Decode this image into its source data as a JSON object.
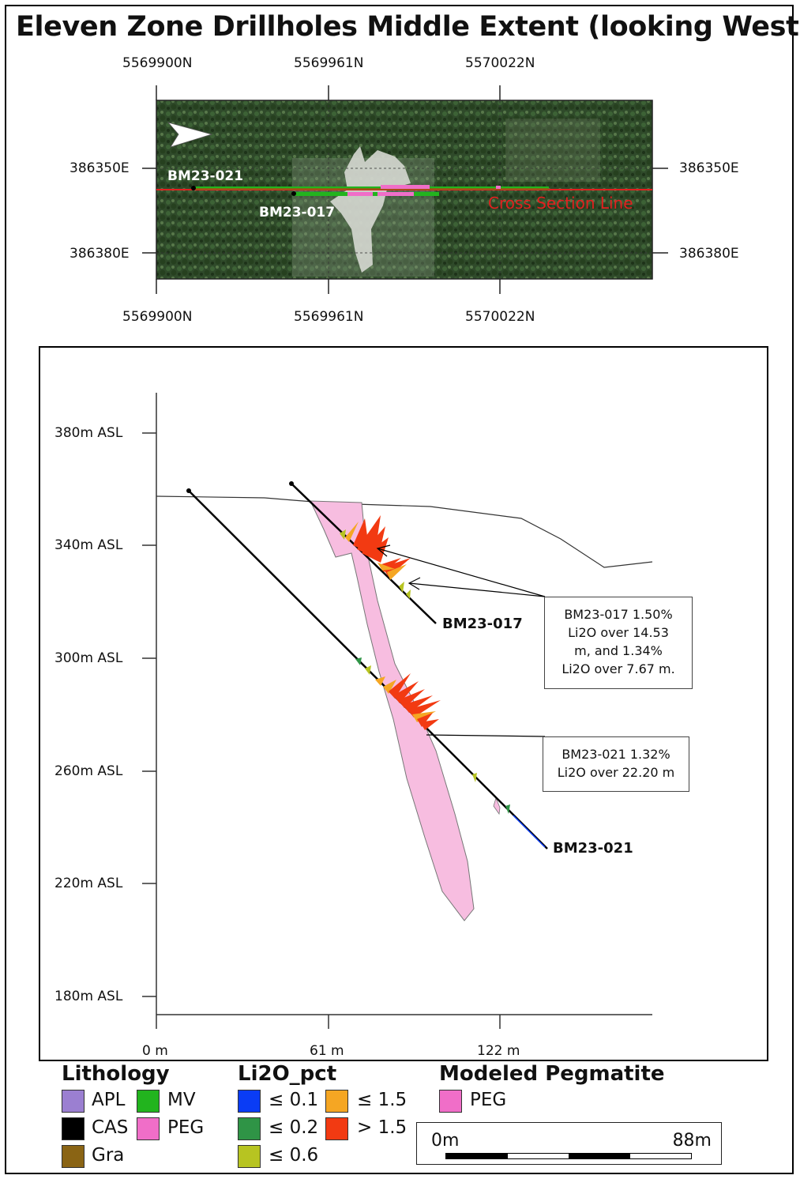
{
  "title": "Eleven Zone Drillholes Middle Extent (looking West)",
  "plan_map": {
    "northings_top": [
      "5569900N",
      "5569961N",
      "5570022N"
    ],
    "northings_bottom": [
      "5569900N",
      "5569961N",
      "5570022N"
    ],
    "eastings_left": [
      "386350E",
      "386380E"
    ],
    "eastings_right": [
      "386350E",
      "386380E"
    ],
    "hole_labels": [
      "BM23-021",
      "BM23-017"
    ],
    "section_line_label": "Cross Section Line",
    "north_arrow_icon": "arrow-icon",
    "section_line_color": "#e0201f"
  },
  "cross_section": {
    "y_axis_labels": [
      "380m ASL",
      "340m ASL",
      "300m ASL",
      "260m ASL",
      "220m ASL",
      "180m ASL"
    ],
    "x_axis_labels": [
      "0 m",
      "61 m",
      "122 m"
    ],
    "holes": [
      {
        "id": "BM23-017"
      },
      {
        "id": "BM23-021"
      }
    ],
    "callouts": [
      {
        "lines": [
          "BM23-017 1.50%",
          "Li2O over 14.53",
          "m, and 1.34%",
          "Li2O over 7.67 m."
        ]
      },
      {
        "lines": [
          "BM23-021 1.32%",
          "Li2O over 22.20 m"
        ]
      }
    ],
    "pegmatite_color": "#f7bde0"
  },
  "legend": {
    "lithology": {
      "title": "Lithology",
      "items": [
        {
          "label": "APL",
          "color": "#9b7fd1"
        },
        {
          "label": "MV",
          "color": "#22b41e"
        },
        {
          "label": "CAS",
          "color": "#000000"
        },
        {
          "label": "PEG",
          "color": "#f06ec8"
        },
        {
          "label": "Gra",
          "color": "#8a6414"
        }
      ]
    },
    "li2o": {
      "title": "Li2O_pct",
      "items": [
        {
          "label": "≤ 0.1",
          "color": "#0a3cf5"
        },
        {
          "label": "≤ 1.5",
          "color": "#f5a623"
        },
        {
          "label": "≤ 0.2",
          "color": "#2f9446"
        },
        {
          "label": "> 1.5",
          "color": "#f23a12"
        },
        {
          "label": "≤ 0.6",
          "color": "#b7c421"
        }
      ]
    },
    "modeled": {
      "title": "Modeled Pegmatite",
      "items": [
        {
          "label": "PEG",
          "color": "#f06ec8"
        }
      ]
    }
  },
  "scale_bar": {
    "start": "0m",
    "end": "88m"
  }
}
